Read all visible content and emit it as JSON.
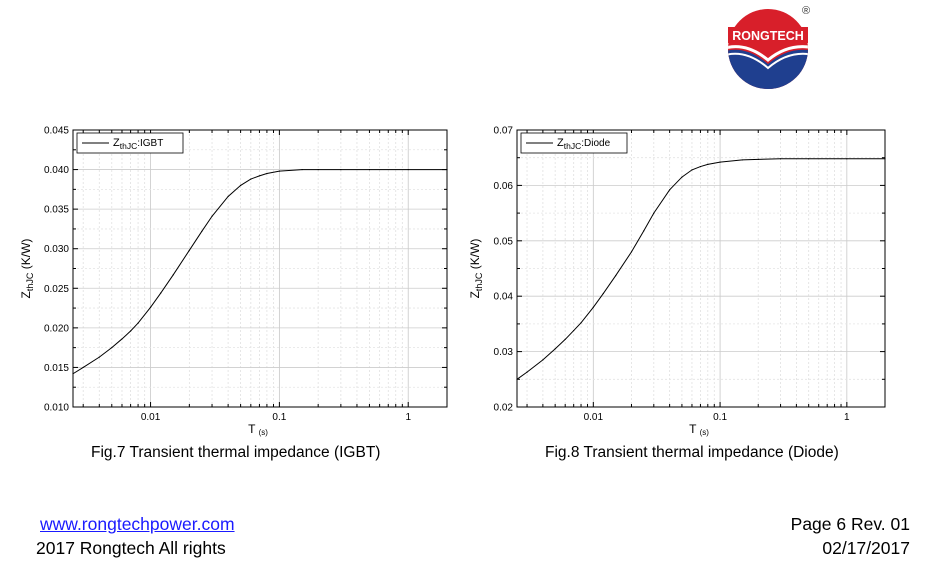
{
  "logo": {
    "text": "RONGTECH",
    "registered": "®"
  },
  "captions": {
    "fig7": "Fig.7 Transient thermal impedance (IGBT)",
    "fig8": "Fig.8 Transient thermal impedance (Diode)"
  },
  "footer": {
    "website": "www.rongtechpower.com",
    "copyright": "2017 Rongtech All rights",
    "page_rev": "Page 6  Rev. 01",
    "date": "02/17/2017"
  },
  "chart_data": [
    {
      "type": "line",
      "id": "fig7",
      "xlabel": "T",
      "xlabel_unit": "(s)",
      "ylabel_main": "Z",
      "ylabel_sub": "thJC",
      "ylabel_unit": " (K/W)",
      "xscale": "log",
      "xlim": [
        0.0025,
        2.0
      ],
      "ylim": [
        0.01,
        0.045
      ],
      "y_ticks": [
        "0.010",
        "0.015",
        "0.020",
        "0.025",
        "0.030",
        "0.035",
        "0.040",
        "0.045"
      ],
      "x_ticks": [
        "0.01",
        "0.1",
        "1"
      ],
      "grid": true,
      "legend_position": "top-left",
      "series": [
        {
          "name_main": "Z",
          "name_sub": "thJC",
          "name_suffix": ":IGBT",
          "x": [
            0.0025,
            0.003,
            0.004,
            0.005,
            0.006,
            0.007,
            0.008,
            0.01,
            0.012,
            0.015,
            0.02,
            0.025,
            0.03,
            0.04,
            0.05,
            0.06,
            0.07,
            0.08,
            0.1,
            0.15,
            0.2,
            0.3,
            0.5,
            1.0,
            2.0
          ],
          "y": [
            0.0142,
            0.015,
            0.0163,
            0.0175,
            0.0186,
            0.0196,
            0.0206,
            0.0226,
            0.0244,
            0.0267,
            0.0298,
            0.0322,
            0.0341,
            0.0366,
            0.038,
            0.0388,
            0.0392,
            0.0395,
            0.0398,
            0.04,
            0.04,
            0.04,
            0.04,
            0.04,
            0.04
          ]
        }
      ]
    },
    {
      "type": "line",
      "id": "fig8",
      "xlabel": "T",
      "xlabel_unit": "(s)",
      "ylabel_main": "Z",
      "ylabel_sub": "thJC",
      "ylabel_unit": " (K/W)",
      "xscale": "log",
      "xlim": [
        0.0025,
        2.0
      ],
      "ylim": [
        0.02,
        0.07
      ],
      "y_ticks": [
        "0.02",
        "0.03",
        "0.04",
        "0.05",
        "0.06",
        "0.07"
      ],
      "x_ticks": [
        "0.01",
        "0.1",
        "1"
      ],
      "grid": true,
      "legend_position": "top-left",
      "series": [
        {
          "name_main": "Z",
          "name_sub": "thJC",
          "name_suffix": ":Diode",
          "x": [
            0.0025,
            0.003,
            0.004,
            0.005,
            0.006,
            0.007,
            0.008,
            0.01,
            0.012,
            0.015,
            0.02,
            0.025,
            0.03,
            0.04,
            0.05,
            0.06,
            0.07,
            0.08,
            0.1,
            0.15,
            0.2,
            0.3,
            0.5,
            1.0,
            2.0
          ],
          "y": [
            0.025,
            0.0263,
            0.0285,
            0.0305,
            0.0322,
            0.0338,
            0.0352,
            0.038,
            0.0405,
            0.0437,
            0.048,
            0.0518,
            0.055,
            0.0592,
            0.0615,
            0.0628,
            0.0634,
            0.0638,
            0.0642,
            0.0646,
            0.0647,
            0.0648,
            0.0648,
            0.0648,
            0.0648
          ]
        }
      ]
    }
  ]
}
